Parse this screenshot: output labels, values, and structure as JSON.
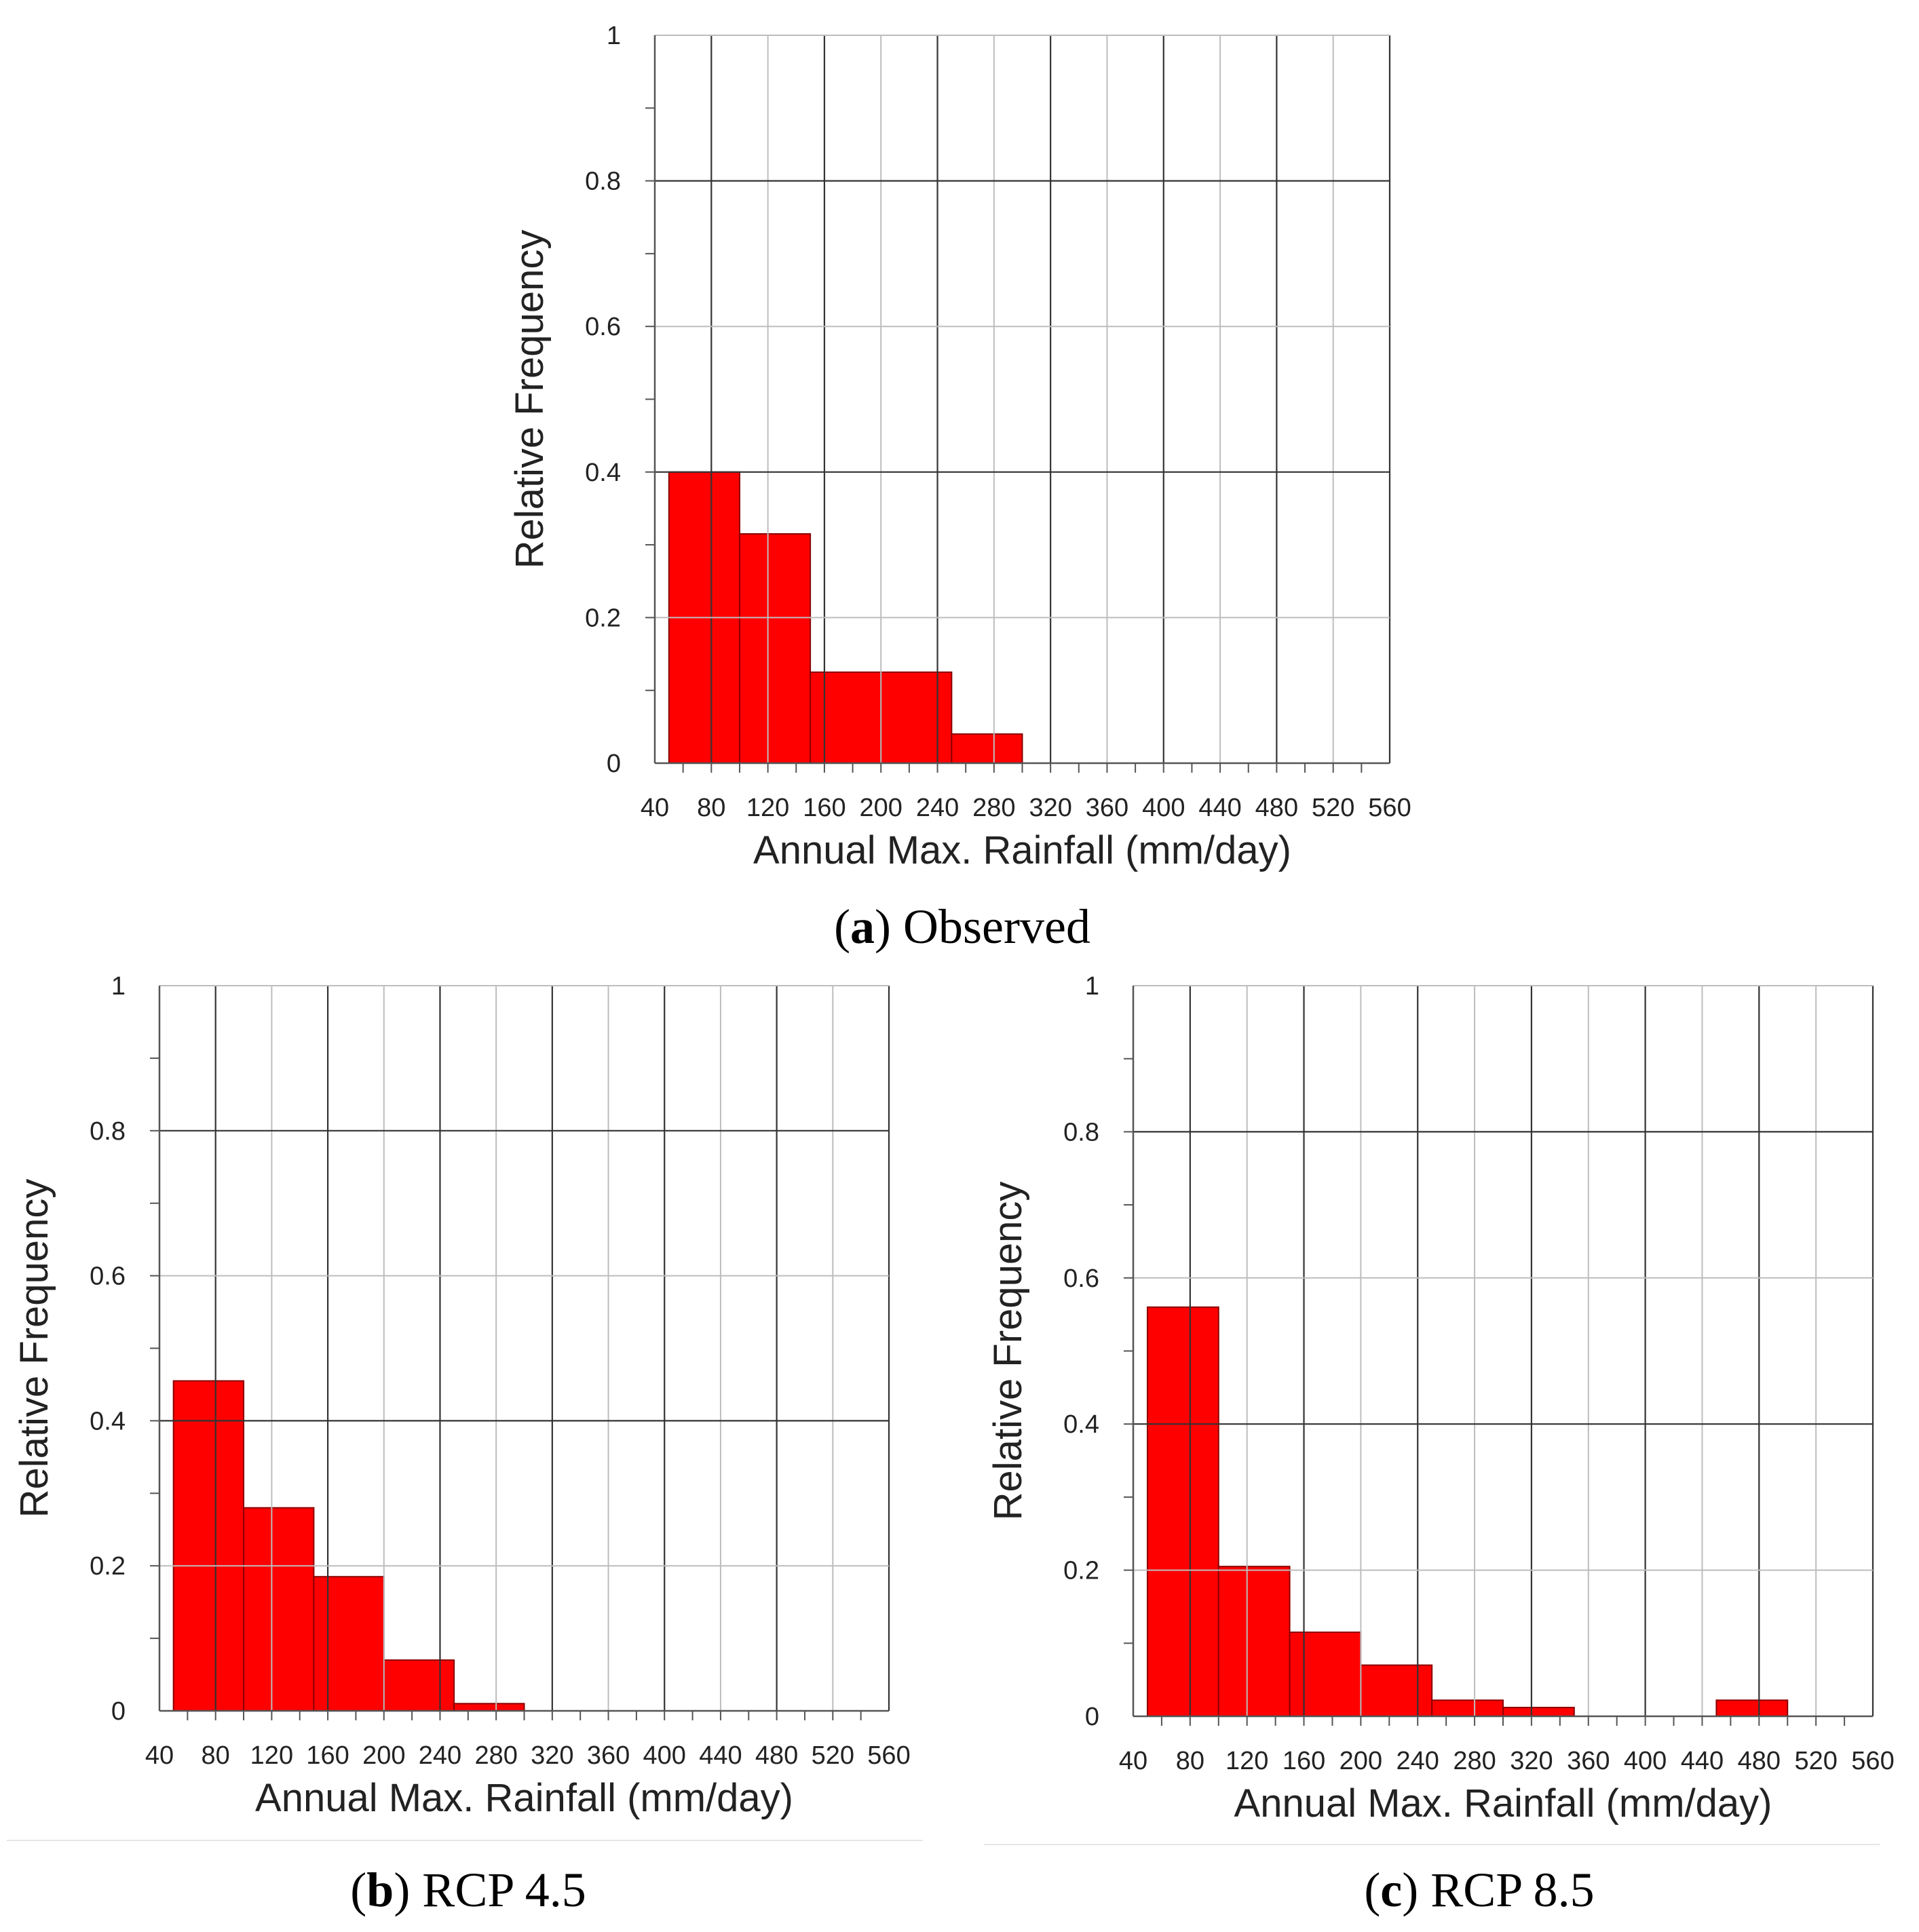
{
  "chart_data": [
    {
      "type": "bar",
      "panel_letter": "a",
      "caption": "Observed",
      "xlabel": "Annual Max. Rainfall (mm/day)",
      "ylabel": "Relative Frequency",
      "xlim": [
        40,
        560
      ],
      "ylim": [
        0,
        1
      ],
      "xticks": [
        "40",
        "80",
        "120",
        "160",
        "200",
        "240",
        "280",
        "320",
        "360",
        "400",
        "440",
        "480",
        "520",
        "560"
      ],
      "yticks": [
        "0",
        "0.2",
        "0.4",
        "0.6",
        "0.8",
        "1"
      ],
      "bins": [
        [
          50,
          100
        ],
        [
          100,
          150
        ],
        [
          150,
          200
        ],
        [
          200,
          250
        ],
        [
          250,
          300
        ]
      ],
      "values": [
        0.4,
        0.315,
        0.125,
        0.125,
        0.04
      ],
      "bar_color": "#ff0000"
    },
    {
      "type": "bar",
      "panel_letter": "b",
      "caption": "RCP 4.5",
      "xlabel": "Annual Max. Rainfall (mm/day)",
      "ylabel": "Relative Frequency",
      "xlim": [
        40,
        560
      ],
      "ylim": [
        0,
        1
      ],
      "xticks": [
        "40",
        "80",
        "120",
        "160",
        "200",
        "240",
        "280",
        "320",
        "360",
        "400",
        "440",
        "480",
        "520",
        "560"
      ],
      "yticks": [
        "0",
        "0.2",
        "0.4",
        "0.6",
        "0.8",
        "1"
      ],
      "bins": [
        [
          50,
          100
        ],
        [
          100,
          150
        ],
        [
          150,
          200
        ],
        [
          200,
          250
        ],
        [
          250,
          300
        ]
      ],
      "values": [
        0.455,
        0.28,
        0.185,
        0.07,
        0.01
      ],
      "bar_color": "#ff0000"
    },
    {
      "type": "bar",
      "panel_letter": "c",
      "caption": "RCP 8.5",
      "xlabel": "Annual Max. Rainfall (mm/day)",
      "ylabel": "Relative Frequency",
      "xlim": [
        40,
        560
      ],
      "ylim": [
        0,
        1
      ],
      "xticks": [
        "40",
        "80",
        "120",
        "160",
        "200",
        "240",
        "280",
        "320",
        "360",
        "400",
        "440",
        "480",
        "520",
        "560"
      ],
      "yticks": [
        "0",
        "0.2",
        "0.4",
        "0.6",
        "0.8",
        "1"
      ],
      "bins": [
        [
          50,
          100
        ],
        [
          100,
          150
        ],
        [
          150,
          200
        ],
        [
          200,
          250
        ],
        [
          250,
          300
        ],
        [
          300,
          350
        ],
        [
          450,
          500
        ]
      ],
      "values": [
        0.56,
        0.205,
        0.115,
        0.07,
        0.022,
        0.012,
        0.022
      ],
      "bar_color": "#ff0000"
    }
  ]
}
